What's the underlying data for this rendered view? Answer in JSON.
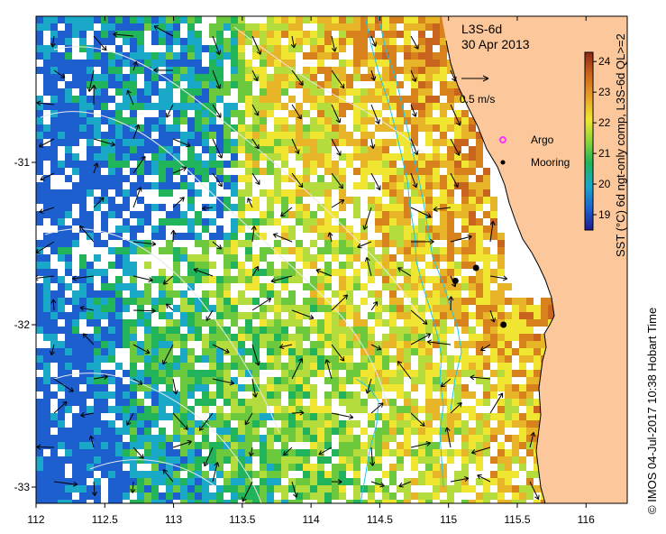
{
  "map": {
    "product": "L3S-6d",
    "date": "30 Apr 2013",
    "velocity_scale_label": "0.5 m/s",
    "x_ticks": [
      "112",
      "112.5",
      "113",
      "113.5",
      "114",
      "114.5",
      "115",
      "115.5",
      "116"
    ],
    "y_ticks": [
      "-31",
      "-32",
      "-33"
    ],
    "lon_range": [
      112,
      116.3
    ],
    "lat_range": [
      -33.1,
      -30.1
    ]
  },
  "legend": {
    "argo_label": "Argo",
    "mooring_label": "Mooring",
    "argo_color": "#ff33ff",
    "mooring_color": "#000000"
  },
  "colorbar": {
    "title": "SST (°C) 6d ngt-only comp, L3S-6d QL>=2",
    "ticks": [
      "24",
      "23",
      "22",
      "21",
      "20",
      "19"
    ],
    "range": [
      18.5,
      24.3
    ]
  },
  "footer": {
    "credit": "© IMOS 04-Jul-2017 10:38 Hobart Time"
  },
  "moorings": [
    {
      "lon": 115.2,
      "lat": -31.65
    },
    {
      "lon": 115.05,
      "lat": -31.73
    },
    {
      "lon": 115.4,
      "lat": -32.0
    }
  ],
  "colors": {
    "land": "#fcc89b",
    "coast": "#000000",
    "isobath": "#1ec8e6"
  }
}
